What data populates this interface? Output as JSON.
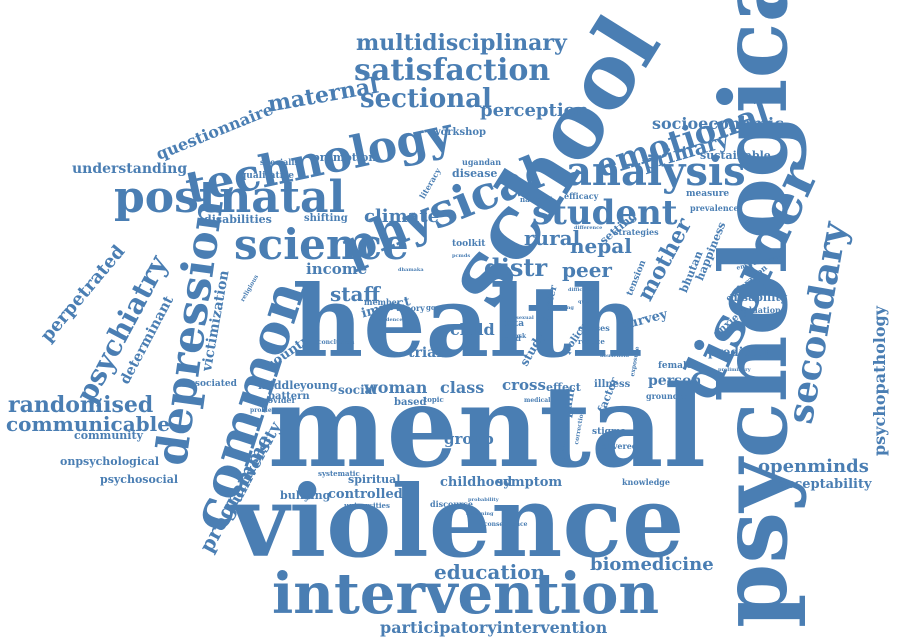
{
  "color": "#4a7eb3",
  "words": [
    {
      "text": "mental",
      "weight": 100
    },
    {
      "text": "health",
      "weight": 95
    },
    {
      "text": "violence",
      "weight": 92
    },
    {
      "text": "psychological",
      "weight": 90
    },
    {
      "text": "school",
      "weight": 80
    },
    {
      "text": "intervention",
      "weight": 70
    },
    {
      "text": "disorder",
      "weight": 62
    },
    {
      "text": "common",
      "weight": 60
    },
    {
      "text": "depression",
      "weight": 56
    },
    {
      "text": "technology",
      "weight": 52
    },
    {
      "text": "postnatal",
      "weight": 52
    },
    {
      "text": "physical",
      "weight": 52
    },
    {
      "text": "science",
      "weight": 50
    },
    {
      "text": "analysis",
      "weight": 48
    },
    {
      "text": "secondary",
      "weight": 46
    },
    {
      "text": "student",
      "weight": 42
    },
    {
      "text": "emotional",
      "weight": 40
    },
    {
      "text": "satisfaction",
      "weight": 38
    },
    {
      "text": "multidisciplinary",
      "weight": 30
    },
    {
      "text": "sectional",
      "weight": 32
    },
    {
      "text": "maternal",
      "weight": 28
    },
    {
      "text": "perception",
      "weight": 22
    },
    {
      "text": "psychiatry",
      "weight": 34
    },
    {
      "text": "randomised",
      "weight": 30
    },
    {
      "text": "communicable",
      "weight": 28
    },
    {
      "text": "psychopathology",
      "weight": 22
    },
    {
      "text": "programme",
      "weight": 26
    },
    {
      "text": "university",
      "weight": 22
    },
    {
      "text": "education",
      "weight": 28
    },
    {
      "text": "biomedicine",
      "weight": 24
    },
    {
      "text": "participatoryintervention",
      "weight": 22
    },
    {
      "text": "openminds",
      "weight": 24
    },
    {
      "text": "acceptability",
      "weight": 18
    },
    {
      "text": "primary",
      "weight": 24
    },
    {
      "text": "socioeconomic",
      "weight": 20
    },
    {
      "text": "sustainable",
      "weight": 14
    },
    {
      "text": "questionnaire",
      "weight": 20
    },
    {
      "text": "understanding",
      "weight": 18
    },
    {
      "text": "perpetrated",
      "weight": 22
    },
    {
      "text": "determinant",
      "weight": 18
    },
    {
      "text": "victimization",
      "weight": 18
    },
    {
      "text": "disabilities",
      "weight": 14
    },
    {
      "text": "climate",
      "weight": 22
    },
    {
      "text": "income",
      "weight": 18
    },
    {
      "text": "staff",
      "weight": 24
    },
    {
      "text": "rural",
      "weight": 24
    },
    {
      "text": "nepal",
      "weight": 24
    },
    {
      "text": "distr",
      "weight": 30
    },
    {
      "text": "peer",
      "weight": 26
    },
    {
      "text": "mother",
      "weight": 28
    },
    {
      "text": "child",
      "weight": 20
    },
    {
      "text": "trial",
      "weight": 20
    },
    {
      "text": "countrie",
      "weight": 16
    },
    {
      "text": "woman",
      "weight": 22
    },
    {
      "text": "class",
      "weight": 22
    },
    {
      "text": "cross",
      "weight": 20
    },
    {
      "text": "social",
      "weight": 18
    },
    {
      "text": "group",
      "weight": 18
    },
    {
      "text": "childhood",
      "weight": 16
    },
    {
      "text": "symptom",
      "weight": 16
    },
    {
      "text": "controlled",
      "weight": 16
    },
    {
      "text": "spiritual",
      "weight": 14
    },
    {
      "text": "bullying",
      "weight": 14
    },
    {
      "text": "middle",
      "weight": 14
    },
    {
      "text": "young",
      "weight": 14
    },
    {
      "text": "pattern",
      "weight": 12
    },
    {
      "text": "based",
      "weight": 12
    },
    {
      "text": "impact",
      "weight": 16
    },
    {
      "text": "community",
      "weight": 14
    },
    {
      "text": "onpsychological",
      "weight": 14
    },
    {
      "text": "psychosocial",
      "weight": 14
    },
    {
      "text": "associated",
      "weight": 12
    },
    {
      "text": "promotion",
      "weight": 14
    },
    {
      "text": "qualitative",
      "weight": 12
    },
    {
      "text": "specialist",
      "weight": 10
    },
    {
      "text": "shifting",
      "weight": 12
    },
    {
      "text": "workshop",
      "weight": 12
    },
    {
      "text": "disease",
      "weight": 14
    },
    {
      "text": "literacy",
      "weight": 10
    },
    {
      "text": "ugandan",
      "weight": 10
    },
    {
      "text": "efficacy",
      "weight": 10
    },
    {
      "text": "national",
      "weight": 9
    },
    {
      "text": "setting",
      "weight": 14
    },
    {
      "text": "strategies",
      "weight": 10
    },
    {
      "text": "measure",
      "weight": 12
    },
    {
      "text": "prevalence",
      "weight": 10
    },
    {
      "text": "happiness",
      "weight": 14
    },
    {
      "text": "bhutan",
      "weight": 14
    },
    {
      "text": "tension",
      "weight": 12
    },
    {
      "text": "survey",
      "weight": 16
    },
    {
      "text": "anxiety",
      "weight": 14
    },
    {
      "text": "exploration",
      "weight": 10
    },
    {
      "text": "disability",
      "weight": 14
    },
    {
      "text": "evaluation",
      "weight": 10
    },
    {
      "text": "predictor",
      "weight": 14
    },
    {
      "text": "person",
      "weight": 18
    },
    {
      "text": "female",
      "weight": 12
    },
    {
      "text": "illness",
      "weight": 12
    },
    {
      "text": "factor",
      "weight": 14
    },
    {
      "text": "grounded",
      "weight": 10
    },
    {
      "text": "participant",
      "weight": 14
    },
    {
      "text": "stigma",
      "weight": 12
    },
    {
      "text": "delivered",
      "weight": 10
    },
    {
      "text": "knowledge",
      "weight": 10
    },
    {
      "text": "effect",
      "weight": 14
    },
    {
      "text": "policy",
      "weight": 12
    },
    {
      "text": "classes",
      "weight": 10
    },
    {
      "text": "reduce",
      "weight": 9
    },
    {
      "text": "environment",
      "weight": 8
    },
    {
      "text": "theory",
      "weight": 10
    },
    {
      "text": "good",
      "weight": 9
    },
    {
      "text": "member",
      "weight": 10
    },
    {
      "text": "toolkit",
      "weight": 12
    },
    {
      "text": "data",
      "weight": 12
    },
    {
      "text": "cmd",
      "weight": 10
    },
    {
      "text": "study",
      "weight": 14
    },
    {
      "text": "cluster",
      "weight": 12
    },
    {
      "text": "topic",
      "weight": 9
    },
    {
      "text": "medical",
      "weight": 8
    },
    {
      "text": "discourse",
      "weight": 10
    },
    {
      "text": "universities",
      "weight": 9
    },
    {
      "text": "systematic",
      "weight": 10
    },
    {
      "text": "provider",
      "weight": 10
    },
    {
      "text": "problem",
      "weight": 9
    },
    {
      "text": "conclusion",
      "weight": 9
    },
    {
      "text": "religious",
      "weight": 8
    },
    {
      "text": "consequence",
      "weight": 8
    },
    {
      "text": "correction",
      "weight": 8
    },
    {
      "text": "exposure",
      "weight": 8
    },
    {
      "text": "preliminary",
      "weight": 7
    },
    {
      "text": "household",
      "weight": 7
    },
    {
      "text": "evidence",
      "weight": 7
    },
    {
      "text": "difficulties",
      "weight": 7
    },
    {
      "text": "dhamaka",
      "weight": 7
    },
    {
      "text": "pcmds",
      "weight": 7
    },
    {
      "text": "sexual",
      "weight": 7
    },
    {
      "text": "task",
      "weight": 8
    },
    {
      "text": "centring",
      "weight": 7
    },
    {
      "text": "difference",
      "weight": 7
    },
    {
      "text": "quality",
      "weight": 7
    },
    {
      "text": "screening",
      "weight": 7
    },
    {
      "text": "probability",
      "weight": 7
    }
  ]
}
